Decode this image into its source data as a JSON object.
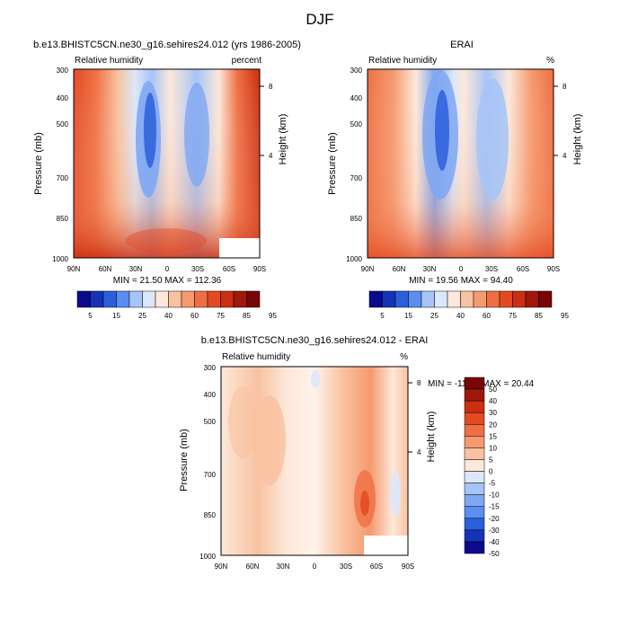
{
  "figure": {
    "title": "DJF"
  },
  "panels": {
    "model": {
      "title": "b.e13.BHISTC5CN.ne30_g16.sehires24.012 (yrs 1986-2005)",
      "left_label": "Relative humidity",
      "right_label": "percent",
      "ylabel": "Pressure (mb)",
      "y2label": "Height (km)",
      "minmax": "MIN = 21.50  MAX = 112.36"
    },
    "obs": {
      "title": "ERAI",
      "left_label": "Relative humidity",
      "right_label": "%",
      "ylabel": "Pressure (mb)",
      "y2label": "Height (km)",
      "minmax": "MIN = 19.56  MAX = 94.40"
    },
    "diff": {
      "title": "b.e13.BHISTC5CN.ne30_g16.sehires24.012 - ERAI",
      "left_label": "Relative humidity",
      "right_label": "%",
      "ylabel": "Pressure (mb)",
      "y2label": "Height (km)",
      "minmax": "MIN = -11.09  MAX =  20.44"
    }
  },
  "chart_data": [
    {
      "type": "heatmap",
      "title": "b.e13.BHISTC5CN.ne30_g16.sehires24.012 (yrs 1986-2005)",
      "ylabel": "Pressure (mb)",
      "y2label": "Height (km)",
      "x_ticks": [
        "90N",
        "60N",
        "30N",
        "0",
        "30S",
        "60S",
        "90S"
      ],
      "y_ticks": [
        "300",
        "400",
        "500",
        "700",
        "850",
        "1000"
      ],
      "y2_ticks": [
        "8",
        "4"
      ],
      "ylim": [
        1000,
        300
      ],
      "y_scale": "log",
      "levels": [
        5,
        15,
        25,
        40,
        60,
        75,
        85,
        95
      ],
      "colorbar_labels": [
        "5",
        "15",
        "25",
        "40",
        "60",
        "75",
        "85",
        "95"
      ],
      "colors": [
        "#0a0a8c",
        "#1533b8",
        "#2b5fdc",
        "#5a8ef0",
        "#a6c4f7",
        "#dbe8fb",
        "#fde8da",
        "#f9c2a0",
        "#f59a6f",
        "#ef6f42",
        "#e44a22",
        "#cc2e12",
        "#a0170b",
        "#7a0505"
      ],
      "min": 21.5,
      "max": 112.36
    },
    {
      "type": "heatmap",
      "title": "ERAI",
      "ylabel": "Pressure (mb)",
      "y2label": "Height (km)",
      "x_ticks": [
        "90N",
        "60N",
        "30N",
        "0",
        "30S",
        "60S",
        "90S"
      ],
      "y_ticks": [
        "300",
        "400",
        "500",
        "700",
        "850",
        "1000"
      ],
      "y2_ticks": [
        "8",
        "4"
      ],
      "ylim": [
        1000,
        300
      ],
      "y_scale": "log",
      "levels": [
        5,
        15,
        25,
        40,
        60,
        75,
        85,
        95
      ],
      "colorbar_labels": [
        "5",
        "15",
        "25",
        "40",
        "60",
        "75",
        "85",
        "95"
      ],
      "colors": [
        "#0a0a8c",
        "#1533b8",
        "#2b5fdc",
        "#5a8ef0",
        "#a6c4f7",
        "#dbe8fb",
        "#fde8da",
        "#f9c2a0",
        "#f59a6f",
        "#ef6f42",
        "#e44a22",
        "#cc2e12",
        "#a0170b",
        "#7a0505"
      ],
      "min": 19.56,
      "max": 94.4
    },
    {
      "type": "heatmap",
      "title": "b.e13.BHISTC5CN.ne30_g16.sehires24.012 - ERAI",
      "ylabel": "Pressure (mb)",
      "y2label": "Height (km)",
      "x_ticks": [
        "90N",
        "60N",
        "30N",
        "0",
        "30S",
        "60S",
        "90S"
      ],
      "y_ticks": [
        "300",
        "400",
        "500",
        "700",
        "850",
        "1000"
      ],
      "y2_ticks": [
        "8",
        "4"
      ],
      "ylim": [
        1000,
        300
      ],
      "y_scale": "log",
      "levels": [
        -50,
        -40,
        -30,
        -20,
        -15,
        -10,
        -5,
        0,
        5,
        10,
        15,
        20,
        30,
        40,
        50
      ],
      "colorbar_labels": [
        "50",
        "40",
        "30",
        "20",
        "15",
        "10",
        "5",
        "0",
        "-5",
        "-10",
        "-15",
        "-20",
        "-30",
        "-40",
        "-50"
      ],
      "colors": [
        "#7a0505",
        "#a0170b",
        "#cc2e12",
        "#e44a22",
        "#ef6f42",
        "#f59a6f",
        "#f9c2a0",
        "#fde8da",
        "#dbe8fb",
        "#a6c4f7",
        "#7fa7f2",
        "#5a8ef0",
        "#2b5fdc",
        "#1533b8",
        "#0a0a8c"
      ],
      "min": -11.09,
      "max": 20.44
    }
  ]
}
